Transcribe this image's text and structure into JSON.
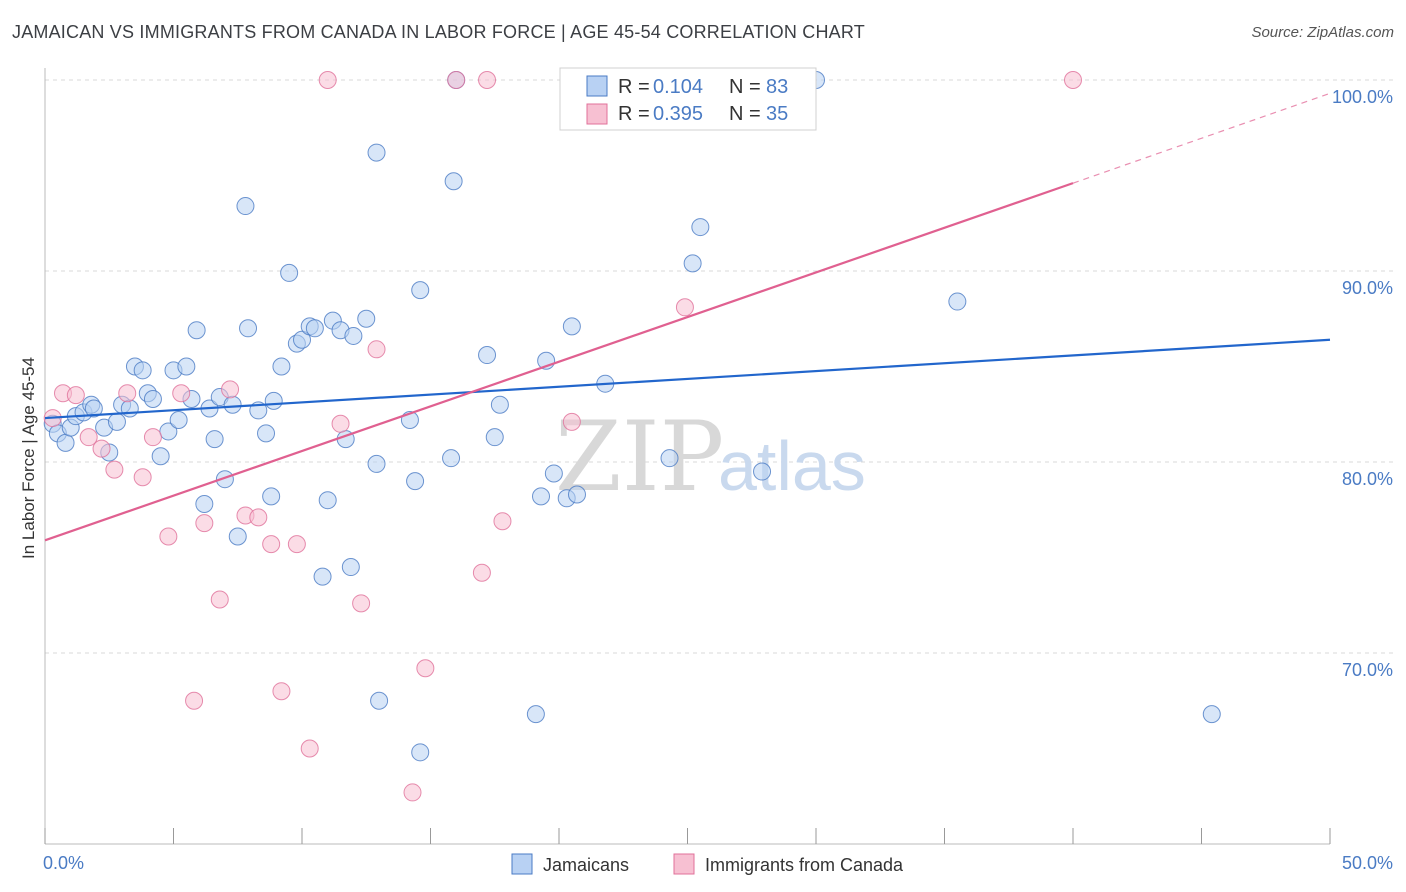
{
  "title": "JAMAICAN VS IMMIGRANTS FROM CANADA IN LABOR FORCE | AGE 45-54 CORRELATION CHART",
  "source": "Source: ZipAtlas.com",
  "watermark": {
    "zip": "ZIP",
    "atlas": "atlas"
  },
  "colors": {
    "blue": "#4a7bc4",
    "blue_fill": "#b8d1f3",
    "blue_line": "#2266cc",
    "pink": "#e0709a",
    "pink_fill": "#f7c0d2",
    "pink_line": "#e06090",
    "grid": "#d8d8d8",
    "axis": "#999999"
  },
  "legend": {
    "rows": [
      {
        "r_label": "R = ",
        "r_value": "0.104",
        "n_label": "N = ",
        "n_value": "83"
      },
      {
        "r_label": "R = ",
        "r_value": "0.395",
        "n_label": "N = ",
        "n_value": "35"
      }
    ]
  },
  "bottom_legend": [
    "Jamaicans",
    "Immigrants from Canada"
  ],
  "chart_data": {
    "type": "scatter",
    "title": "JAMAICAN VS IMMIGRANTS FROM CANADA IN LABOR FORCE | AGE 45-54 CORRELATION CHART",
    "xlabel": "",
    "ylabel": "In Labor Force | Age 45-54",
    "xlim": [
      0,
      50
    ],
    "ylim": [
      60,
      102
    ],
    "x_tick_labels": [
      "0.0%",
      "50.0%"
    ],
    "y_ticks": [
      70,
      80,
      90,
      100
    ],
    "y_tick_labels": [
      "70.0%",
      "80.0%",
      "90.0%",
      "100.0%"
    ],
    "grid": true,
    "series": [
      {
        "name": "Jamaicans",
        "r": 0.104,
        "n": 83,
        "trend": {
          "x": [
            0,
            50
          ],
          "y": [
            82.3,
            86.4
          ]
        },
        "points": [
          [
            0.3,
            82.0
          ],
          [
            0.5,
            81.5
          ],
          [
            0.8,
            81.0
          ],
          [
            1.0,
            81.8
          ],
          [
            1.2,
            82.4
          ],
          [
            1.5,
            82.6
          ],
          [
            1.8,
            83.0
          ],
          [
            1.9,
            82.8
          ],
          [
            2.3,
            81.8
          ],
          [
            2.5,
            80.5
          ],
          [
            2.8,
            82.1
          ],
          [
            3.0,
            83.0
          ],
          [
            3.3,
            82.8
          ],
          [
            3.5,
            85.0
          ],
          [
            3.8,
            84.8
          ],
          [
            4.0,
            83.6
          ],
          [
            4.2,
            83.3
          ],
          [
            4.5,
            80.3
          ],
          [
            4.8,
            81.6
          ],
          [
            5.0,
            84.8
          ],
          [
            5.2,
            82.2
          ],
          [
            5.5,
            85.0
          ],
          [
            5.7,
            83.3
          ],
          [
            5.9,
            86.9
          ],
          [
            6.2,
            77.8
          ],
          [
            6.4,
            82.8
          ],
          [
            6.6,
            81.2
          ],
          [
            6.8,
            83.4
          ],
          [
            7.0,
            79.1
          ],
          [
            7.3,
            83.0
          ],
          [
            7.5,
            76.1
          ],
          [
            7.8,
            93.4
          ],
          [
            7.9,
            87.0
          ],
          [
            8.3,
            82.7
          ],
          [
            8.6,
            81.5
          ],
          [
            8.8,
            78.2
          ],
          [
            8.9,
            83.2
          ],
          [
            9.2,
            85.0
          ],
          [
            9.5,
            89.9
          ],
          [
            9.8,
            86.2
          ],
          [
            10.0,
            86.4
          ],
          [
            10.3,
            87.1
          ],
          [
            10.5,
            87.0
          ],
          [
            10.8,
            74.0
          ],
          [
            11.0,
            78.0
          ],
          [
            11.2,
            87.4
          ],
          [
            11.5,
            86.9
          ],
          [
            11.7,
            81.2
          ],
          [
            11.9,
            74.5
          ],
          [
            12.0,
            86.6
          ],
          [
            12.5,
            87.5
          ],
          [
            12.9,
            79.9
          ],
          [
            12.9,
            96.2
          ],
          [
            13.0,
            67.5
          ],
          [
            14.2,
            82.2
          ],
          [
            14.4,
            79.0
          ],
          [
            14.6,
            89.0
          ],
          [
            14.6,
            64.8
          ],
          [
            15.8,
            80.2
          ],
          [
            15.9,
            94.7
          ],
          [
            16.0,
            100.0
          ],
          [
            17.2,
            85.6
          ],
          [
            17.5,
            81.3
          ],
          [
            17.7,
            83.0
          ],
          [
            19.1,
            66.8
          ],
          [
            19.3,
            78.2
          ],
          [
            19.5,
            85.3
          ],
          [
            19.8,
            79.4
          ],
          [
            20.3,
            78.1
          ],
          [
            20.5,
            87.1
          ],
          [
            20.7,
            78.3
          ],
          [
            21.8,
            84.1
          ],
          [
            24.3,
            80.2
          ],
          [
            24.0,
            100.0
          ],
          [
            25.2,
            90.4
          ],
          [
            25.5,
            92.3
          ],
          [
            27.9,
            79.5
          ],
          [
            27.8,
            100.0
          ],
          [
            28.5,
            100.0
          ],
          [
            29.0,
            100.0
          ],
          [
            30.0,
            100.0
          ],
          [
            35.5,
            88.4
          ],
          [
            45.4,
            66.8
          ]
        ]
      },
      {
        "name": "Immigrants from Canada",
        "r": 0.395,
        "n": 35,
        "trend": {
          "x": [
            0,
            40
          ],
          "y": [
            75.9,
            94.6
          ]
        },
        "trend_dashed": {
          "x": [
            40,
            50
          ],
          "y": [
            94.6,
            99.3
          ]
        },
        "points": [
          [
            0.3,
            82.3
          ],
          [
            0.7,
            83.6
          ],
          [
            1.2,
            83.5
          ],
          [
            1.7,
            81.3
          ],
          [
            2.2,
            80.7
          ],
          [
            2.7,
            79.6
          ],
          [
            3.2,
            83.6
          ],
          [
            3.8,
            79.2
          ],
          [
            4.2,
            81.3
          ],
          [
            4.8,
            76.1
          ],
          [
            5.3,
            83.6
          ],
          [
            5.8,
            67.5
          ],
          [
            6.2,
            76.8
          ],
          [
            6.8,
            72.8
          ],
          [
            7.2,
            83.8
          ],
          [
            7.8,
            77.2
          ],
          [
            8.3,
            77.1
          ],
          [
            8.8,
            75.7
          ],
          [
            9.2,
            68.0
          ],
          [
            9.8,
            75.7
          ],
          [
            10.3,
            65.0
          ],
          [
            11.0,
            100.0
          ],
          [
            11.5,
            82.0
          ],
          [
            12.3,
            72.6
          ],
          [
            12.9,
            85.9
          ],
          [
            14.3,
            62.7
          ],
          [
            14.8,
            69.2
          ],
          [
            16.0,
            100.0
          ],
          [
            17.0,
            74.2
          ],
          [
            17.2,
            100.0
          ],
          [
            17.8,
            76.9
          ],
          [
            20.5,
            82.1
          ],
          [
            24.9,
            88.1
          ],
          [
            27.9,
            100.0
          ],
          [
            40.0,
            100.0
          ]
        ]
      }
    ]
  }
}
